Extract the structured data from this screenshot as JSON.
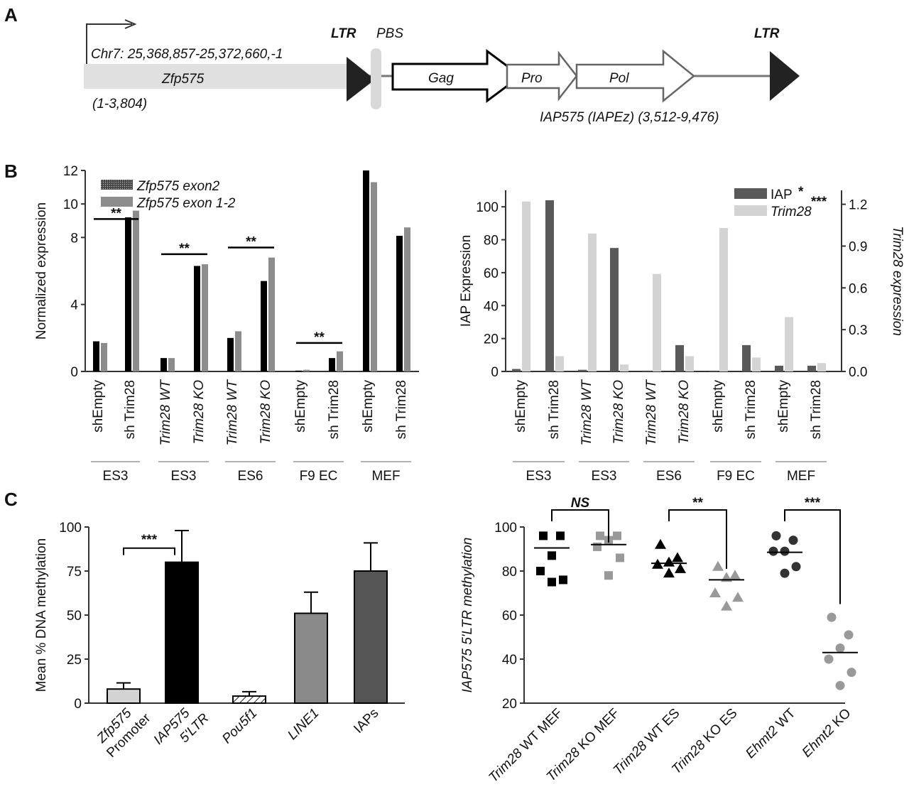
{
  "panels": {
    "a": "A",
    "b": "B",
    "c": "C"
  },
  "diagram_a": {
    "ltr_left": "LTR",
    "pbs": "PBS",
    "ltr_right": "LTR",
    "chr": "Chr7: 25,368,857-25,372,660,-1",
    "gene": "Zfp575",
    "gene_range": "(1-3,804)",
    "gag": "Gag",
    "pro": "Pro",
    "pol": "Pol",
    "iap": "IAP575 (IAPEz) (3,512-9,476)"
  },
  "chart_data": [
    {
      "id": "B-left",
      "type": "bar",
      "ylabel": "Normalized expression",
      "ylim": [
        0,
        12
      ],
      "yticks": [
        0,
        4,
        8,
        10,
        12
      ],
      "categories": [
        "shEmpty",
        "sh Trim28",
        "Trim28 WT",
        "Trim28 KO",
        "Trim28 WT",
        "Trim28 KO",
        "shEmpty",
        "sh Trim28",
        "shEmpty",
        "sh Trim28"
      ],
      "groups": [
        "ES3",
        "ES3",
        "ES6",
        "F9 EC",
        "MEF"
      ],
      "series": [
        {
          "name": "Zfp575 exon2",
          "color": "#000000",
          "values": [
            1.8,
            9.2,
            0.8,
            6.3,
            2.0,
            5.4,
            0.05,
            0.8,
            12.0,
            8.1
          ]
        },
        {
          "name": "Zfp575 exon 1-2",
          "color": "#8c8c8c",
          "values": [
            1.7,
            9.6,
            0.8,
            6.4,
            2.4,
            6.8,
            0.1,
            1.2,
            11.3,
            8.6
          ]
        }
      ],
      "significance": [
        {
          "label": "**",
          "from": 0,
          "to": 1,
          "y": 9.1
        },
        {
          "label": "**",
          "from": 2,
          "to": 3,
          "y": 7.0
        },
        {
          "label": "**",
          "from": 4,
          "to": 5,
          "y": 7.4
        },
        {
          "label": "**",
          "from": 6,
          "to": 7,
          "y": 1.7
        }
      ]
    },
    {
      "id": "B-right",
      "type": "bar",
      "ylabel": "IAP Expression",
      "ylabel_right": "Trim28 expression",
      "ylim": [
        0,
        110
      ],
      "ylim_right": [
        0,
        1.3
      ],
      "yticks": [
        0,
        20,
        40,
        60,
        80,
        100
      ],
      "yticks_right": [
        "0.0",
        "0.3",
        "0.6",
        "0.9",
        "1.2"
      ],
      "categories": [
        "shEmpty",
        "sh Trim28",
        "Trim28 WT",
        "Trim28 KO",
        "Trim28 WT",
        "Trim28 KO",
        "shEmpty",
        "sh Trim28",
        "shEmpty",
        "sh Trim28"
      ],
      "groups": [
        "ES3",
        "ES3",
        "ES6",
        "F9 EC",
        "MEF"
      ],
      "legend_mark": "*",
      "legend_sig": "***",
      "series": [
        {
          "name": "IAP",
          "color": "#595959",
          "axis": "left",
          "values": [
            1.5,
            104,
            1,
            75,
            0.5,
            16,
            0.5,
            16,
            3.5,
            3.5
          ]
        },
        {
          "name": "Trim28",
          "color": "#d3d3d3",
          "axis": "right",
          "values": [
            1.22,
            0.11,
            0.99,
            0.05,
            0.7,
            0.11,
            1.03,
            0.1,
            0.39,
            0.06
          ]
        }
      ]
    },
    {
      "id": "C-left",
      "type": "bar",
      "ylabel": "Mean % DNA methylation",
      "ylim": [
        0,
        100
      ],
      "yticks": [
        0,
        25,
        50,
        75,
        100
      ],
      "categories": [
        "Zfp575 Promoter",
        "IAP575 5'LTR",
        "Pou5f1",
        "LINE1",
        "IAPs"
      ],
      "tick_lines": [
        [
          "Zfp575",
          "Promoter"
        ],
        [
          "IAP575",
          "5'LTR"
        ],
        [
          "Pou5f1"
        ],
        [
          "LINE1"
        ],
        [
          "IAPs"
        ]
      ],
      "values": [
        8,
        80,
        4,
        51,
        75
      ],
      "errors": [
        3.5,
        18,
        2.5,
        12,
        16
      ],
      "colors": [
        "#d3d3d3",
        "#000000",
        "#ffffff",
        "#8a8a8a",
        "#555555"
      ],
      "significance": [
        {
          "label": "***",
          "from": 0,
          "to": 1,
          "y": 88
        }
      ]
    },
    {
      "id": "C-right",
      "type": "scatter",
      "ylabel": "IAP575 5'LTR methylation",
      "ylim": [
        20,
        100
      ],
      "yticks": [
        20,
        40,
        60,
        80,
        100
      ],
      "categories": [
        "Trim28 WT MEF",
        "Trim28 KO MEF",
        "Trim28 WT ES",
        "Trim28 KO ES",
        "Ehmt2 WT",
        "Ehmt2 KO"
      ],
      "points": [
        [
          96,
          96,
          87,
          80,
          76,
          75
        ],
        [
          96,
          96,
          94,
          91,
          86,
          78
        ],
        [
          92,
          86,
          84,
          83,
          81,
          79
        ],
        [
          82,
          78,
          77,
          70,
          68,
          64
        ],
        [
          96,
          94,
          89,
          89,
          82,
          79
        ],
        [
          59,
          51,
          45,
          40,
          34,
          28
        ]
      ],
      "means": [
        90.5,
        92,
        83.5,
        76,
        88.5,
        43
      ],
      "markers": [
        "square",
        "square",
        "triangle",
        "triangle",
        "circle",
        "circle"
      ],
      "colors": [
        "#000000",
        "#999999",
        "#000000",
        "#999999",
        "#333333",
        "#999999"
      ],
      "significance": [
        {
          "label": "NS",
          "from": 0,
          "to": 1
        },
        {
          "label": "**",
          "from": 2,
          "to": 3
        },
        {
          "label": "***",
          "from": 4,
          "to": 5
        }
      ]
    }
  ]
}
